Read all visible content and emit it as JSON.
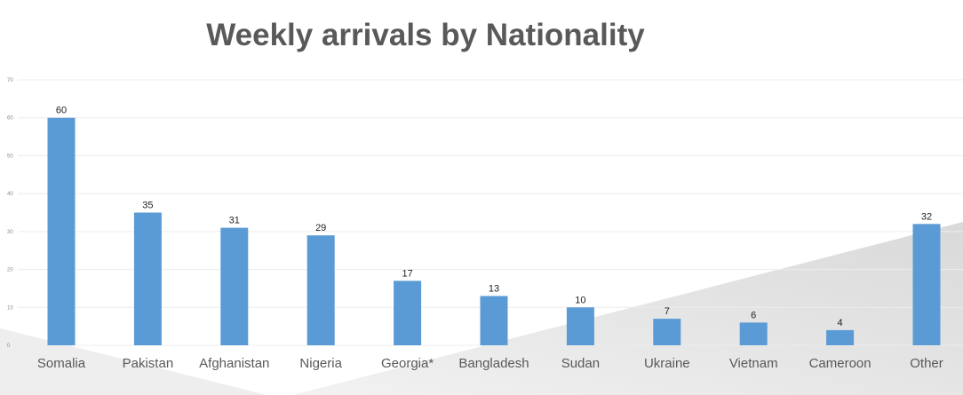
{
  "chart_data": {
    "type": "bar",
    "title": "Weekly arrivals by Nationality",
    "xlabel": "",
    "ylabel": "",
    "ylim": [
      0,
      70
    ],
    "yticks": [
      0,
      10,
      20,
      30,
      40,
      50,
      60,
      70
    ],
    "grid": true,
    "legend": "none",
    "categories": [
      "Somalia",
      "Pakistan",
      "Afghanistan",
      "Nigeria",
      "Georgia*",
      "Bangladesh",
      "Sudan",
      "Ukraine",
      "Vietnam",
      "Cameroon",
      "Other"
    ],
    "values": [
      60,
      35,
      31,
      29,
      17,
      13,
      10,
      7,
      6,
      4,
      32
    ],
    "data_labels": true
  },
  "colors": {
    "bar": "#5b9bd5",
    "grid": "#ececec",
    "background_shape": "#e3e3e3"
  }
}
